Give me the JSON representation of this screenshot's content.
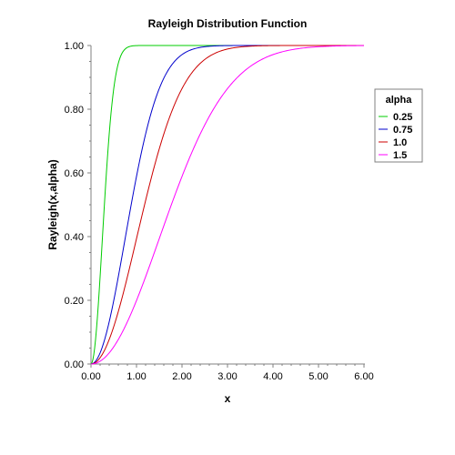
{
  "chart_data": {
    "type": "line",
    "title": "Rayleigh Distribution Function",
    "xlabel": "x",
    "ylabel": "Rayleigh(x,alpha)",
    "xlim": [
      0,
      6
    ],
    "ylim": [
      0,
      1
    ],
    "x_ticks": [
      "0.00",
      "1.00",
      "2.00",
      "3.00",
      "4.00",
      "5.00",
      "6.00"
    ],
    "y_ticks": [
      "0.00",
      "0.20",
      "0.40",
      "0.60",
      "0.80",
      "1.00"
    ],
    "grid": false,
    "legend": {
      "title": "alpha",
      "placement": "right"
    },
    "function": "1 - exp(-x^2 / (2 * alpha^2))",
    "series": [
      {
        "name": "0.25",
        "alpha": 0.25,
        "color": "#00cc00"
      },
      {
        "name": "0.75",
        "alpha": 0.75,
        "color": "#0000cc"
      },
      {
        "name": "1.0",
        "alpha": 1.0,
        "color": "#cc0000"
      },
      {
        "name": "1.5",
        "alpha": 1.5,
        "color": "#ff00ff"
      }
    ]
  }
}
